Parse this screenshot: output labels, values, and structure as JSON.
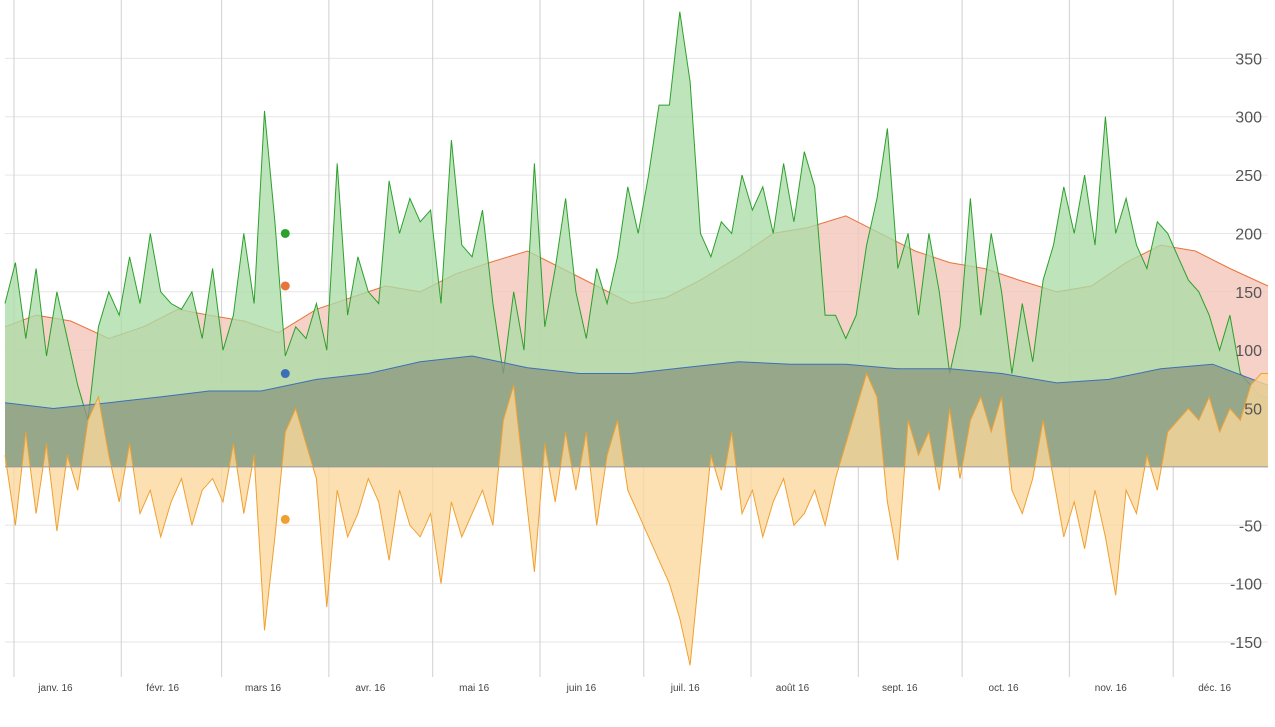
{
  "chart_data": {
    "type": "area",
    "x_tick_labels": [
      "janv. 16",
      "févr. 16",
      "mars 16",
      "avr. 16",
      "mai 16",
      "juin 16",
      "juil. 16",
      "août 16",
      "sept. 16",
      "oct. 16",
      "nov. 16",
      "déc. 16"
    ],
    "y_ticks": [
      -150,
      -100,
      -50,
      50,
      100,
      150,
      200,
      250,
      300,
      350
    ],
    "ylim": [
      -180,
      400
    ],
    "x_range": [
      "2016-01-01",
      "2016-12-31"
    ],
    "grid": true,
    "legend": "none",
    "series": [
      {
        "color": "#e8743b",
        "fill": "#f4c4b8",
        "x": [
          "2016-01-01",
          "2016-01-10",
          "2016-01-20",
          "2016-01-31",
          "2016-02-10",
          "2016-02-20",
          "2016-02-29",
          "2016-03-10",
          "2016-03-20",
          "2016-03-31",
          "2016-04-10",
          "2016-04-20",
          "2016-04-30",
          "2016-05-10",
          "2016-05-20",
          "2016-05-31",
          "2016-06-10",
          "2016-06-20",
          "2016-06-30",
          "2016-07-10",
          "2016-07-20",
          "2016-07-31",
          "2016-08-10",
          "2016-08-20",
          "2016-08-31",
          "2016-09-10",
          "2016-09-20",
          "2016-09-30",
          "2016-10-10",
          "2016-10-20",
          "2016-10-31",
          "2016-11-10",
          "2016-11-20",
          "2016-11-30",
          "2016-12-10",
          "2016-12-20",
          "2016-12-31"
        ],
        "values": [
          120,
          130,
          125,
          110,
          120,
          135,
          130,
          125,
          115,
          135,
          145,
          155,
          150,
          165,
          175,
          185,
          170,
          155,
          140,
          145,
          160,
          180,
          200,
          205,
          215,
          200,
          185,
          175,
          170,
          160,
          150,
          155,
          175,
          190,
          185,
          170,
          155
        ]
      },
      {
        "color": "#2ca02c",
        "fill": "#aadda7",
        "x": [
          "2016-01-01",
          "2016-01-04",
          "2016-01-07",
          "2016-01-10",
          "2016-01-13",
          "2016-01-16",
          "2016-01-19",
          "2016-01-22",
          "2016-01-25",
          "2016-01-28",
          "2016-01-31",
          "2016-02-03",
          "2016-02-06",
          "2016-02-09",
          "2016-02-12",
          "2016-02-15",
          "2016-02-18",
          "2016-02-21",
          "2016-02-24",
          "2016-02-27",
          "2016-03-01",
          "2016-03-04",
          "2016-03-07",
          "2016-03-10",
          "2016-03-13",
          "2016-03-16",
          "2016-03-19",
          "2016-03-22",
          "2016-03-25",
          "2016-03-28",
          "2016-03-31",
          "2016-04-03",
          "2016-04-06",
          "2016-04-09",
          "2016-04-12",
          "2016-04-15",
          "2016-04-18",
          "2016-04-21",
          "2016-04-24",
          "2016-04-27",
          "2016-04-30",
          "2016-05-03",
          "2016-05-06",
          "2016-05-09",
          "2016-05-12",
          "2016-05-15",
          "2016-05-18",
          "2016-05-21",
          "2016-05-24",
          "2016-05-27",
          "2016-05-30",
          "2016-06-02",
          "2016-06-05",
          "2016-06-08",
          "2016-06-11",
          "2016-06-14",
          "2016-06-17",
          "2016-06-20",
          "2016-06-23",
          "2016-06-26",
          "2016-06-29",
          "2016-07-02",
          "2016-07-05",
          "2016-07-08",
          "2016-07-11",
          "2016-07-14",
          "2016-07-17",
          "2016-07-20",
          "2016-07-23",
          "2016-07-26",
          "2016-07-29",
          "2016-08-01",
          "2016-08-04",
          "2016-08-07",
          "2016-08-10",
          "2016-08-13",
          "2016-08-16",
          "2016-08-19",
          "2016-08-22",
          "2016-08-25",
          "2016-08-28",
          "2016-08-31",
          "2016-09-03",
          "2016-09-06",
          "2016-09-09",
          "2016-09-12",
          "2016-09-15",
          "2016-09-18",
          "2016-09-21",
          "2016-09-24",
          "2016-09-27",
          "2016-09-30",
          "2016-10-03",
          "2016-10-06",
          "2016-10-09",
          "2016-10-12",
          "2016-10-15",
          "2016-10-18",
          "2016-10-21",
          "2016-10-24",
          "2016-10-27",
          "2016-10-30",
          "2016-11-02",
          "2016-11-05",
          "2016-11-08",
          "2016-11-11",
          "2016-11-14",
          "2016-11-17",
          "2016-11-20",
          "2016-11-23",
          "2016-11-26",
          "2016-11-29",
          "2016-12-02",
          "2016-12-05",
          "2016-12-08",
          "2016-12-11",
          "2016-12-14",
          "2016-12-17",
          "2016-12-20",
          "2016-12-23",
          "2016-12-26",
          "2016-12-29",
          "2016-12-31"
        ],
        "values": [
          140,
          175,
          110,
          170,
          95,
          150,
          110,
          70,
          40,
          120,
          150,
          130,
          180,
          140,
          200,
          150,
          140,
          135,
          150,
          110,
          170,
          100,
          130,
          200,
          140,
          305,
          210,
          95,
          120,
          110,
          140,
          100,
          260,
          130,
          180,
          150,
          140,
          245,
          200,
          230,
          210,
          220,
          140,
          280,
          190,
          180,
          220,
          140,
          80,
          150,
          100,
          260,
          120,
          170,
          230,
          150,
          110,
          170,
          140,
          180,
          240,
          200,
          250,
          310,
          310,
          390,
          330,
          200,
          180,
          210,
          200,
          250,
          220,
          240,
          200,
          260,
          210,
          270,
          240,
          130,
          130,
          110,
          130,
          190,
          230,
          290,
          170,
          200,
          130,
          200,
          150,
          80,
          120,
          230,
          130,
          200,
          150,
          80,
          140,
          90,
          160,
          190,
          240,
          200,
          250,
          190,
          300,
          200,
          230,
          190,
          170,
          210,
          200,
          180,
          160,
          150,
          130,
          100,
          130,
          80,
          70,
          60,
          60
        ]
      },
      {
        "color": "#3d6fb6",
        "fill": "#8d9a80",
        "x": [
          "2016-01-01",
          "2016-01-15",
          "2016-01-31",
          "2016-02-15",
          "2016-02-29",
          "2016-03-15",
          "2016-03-31",
          "2016-04-15",
          "2016-04-30",
          "2016-05-15",
          "2016-05-31",
          "2016-06-15",
          "2016-06-30",
          "2016-07-15",
          "2016-07-31",
          "2016-08-15",
          "2016-08-31",
          "2016-09-15",
          "2016-09-30",
          "2016-10-15",
          "2016-10-31",
          "2016-11-15",
          "2016-11-30",
          "2016-12-15",
          "2016-12-31"
        ],
        "values": [
          55,
          50,
          55,
          60,
          65,
          65,
          75,
          80,
          90,
          95,
          85,
          80,
          80,
          85,
          90,
          88,
          88,
          84,
          84,
          80,
          72,
          75,
          84,
          88,
          70
        ]
      },
      {
        "color": "#f0a030",
        "fill": "#fbd79c",
        "x": [
          "2016-01-01",
          "2016-01-04",
          "2016-01-07",
          "2016-01-10",
          "2016-01-13",
          "2016-01-16",
          "2016-01-19",
          "2016-01-22",
          "2016-01-25",
          "2016-01-28",
          "2016-01-31",
          "2016-02-03",
          "2016-02-06",
          "2016-02-09",
          "2016-02-12",
          "2016-02-15",
          "2016-02-18",
          "2016-02-21",
          "2016-02-24",
          "2016-02-27",
          "2016-03-01",
          "2016-03-04",
          "2016-03-07",
          "2016-03-10",
          "2016-03-13",
          "2016-03-16",
          "2016-03-19",
          "2016-03-22",
          "2016-03-25",
          "2016-03-28",
          "2016-03-31",
          "2016-04-03",
          "2016-04-06",
          "2016-04-09",
          "2016-04-12",
          "2016-04-15",
          "2016-04-18",
          "2016-04-21",
          "2016-04-24",
          "2016-04-27",
          "2016-04-30",
          "2016-05-03",
          "2016-05-06",
          "2016-05-09",
          "2016-05-12",
          "2016-05-15",
          "2016-05-18",
          "2016-05-21",
          "2016-05-24",
          "2016-05-27",
          "2016-05-30",
          "2016-06-02",
          "2016-06-05",
          "2016-06-08",
          "2016-06-11",
          "2016-06-14",
          "2016-06-17",
          "2016-06-20",
          "2016-06-23",
          "2016-06-26",
          "2016-06-29",
          "2016-07-02",
          "2016-07-05",
          "2016-07-08",
          "2016-07-11",
          "2016-07-14",
          "2016-07-17",
          "2016-07-20",
          "2016-07-23",
          "2016-07-26",
          "2016-07-29",
          "2016-08-01",
          "2016-08-04",
          "2016-08-07",
          "2016-08-10",
          "2016-08-13",
          "2016-08-16",
          "2016-08-19",
          "2016-08-22",
          "2016-08-25",
          "2016-08-28",
          "2016-08-31",
          "2016-09-03",
          "2016-09-06",
          "2016-09-09",
          "2016-09-12",
          "2016-09-15",
          "2016-09-18",
          "2016-09-21",
          "2016-09-24",
          "2016-09-27",
          "2016-09-30",
          "2016-10-03",
          "2016-10-06",
          "2016-10-09",
          "2016-10-12",
          "2016-10-15",
          "2016-10-18",
          "2016-10-21",
          "2016-10-24",
          "2016-10-27",
          "2016-10-30",
          "2016-11-02",
          "2016-11-05",
          "2016-11-08",
          "2016-11-11",
          "2016-11-14",
          "2016-11-17",
          "2016-11-20",
          "2016-11-23",
          "2016-11-26",
          "2016-11-29",
          "2016-12-02",
          "2016-12-05",
          "2016-12-08",
          "2016-12-11",
          "2016-12-14",
          "2016-12-17",
          "2016-12-20",
          "2016-12-23",
          "2016-12-26",
          "2016-12-29",
          "2016-12-31"
        ],
        "values": [
          10,
          -50,
          30,
          -40,
          20,
          -55,
          10,
          -20,
          40,
          60,
          10,
          -30,
          20,
          -40,
          -20,
          -60,
          -30,
          -10,
          -50,
          -20,
          -10,
          -30,
          20,
          -40,
          10,
          -140,
          -60,
          30,
          50,
          20,
          -10,
          -120,
          -20,
          -60,
          -40,
          -10,
          -30,
          -80,
          -20,
          -50,
          -60,
          -40,
          -100,
          -30,
          -60,
          -40,
          -20,
          -50,
          40,
          70,
          -10,
          -90,
          20,
          -30,
          30,
          -20,
          30,
          -50,
          10,
          40,
          -20,
          -40,
          -60,
          -80,
          -100,
          -130,
          -170,
          -80,
          10,
          -20,
          30,
          -40,
          -20,
          -60,
          -30,
          -10,
          -50,
          -40,
          -20,
          -50,
          -10,
          20,
          50,
          80,
          60,
          -30,
          -80,
          40,
          10,
          30,
          -20,
          50,
          -10,
          40,
          60,
          30,
          60,
          -20,
          -40,
          -10,
          40,
          -10,
          -60,
          -30,
          -70,
          -20,
          -60,
          -110,
          -20,
          -40,
          10,
          -20,
          30,
          40,
          50,
          40,
          60,
          30,
          50,
          40,
          70,
          80,
          80
        ]
      }
    ]
  }
}
